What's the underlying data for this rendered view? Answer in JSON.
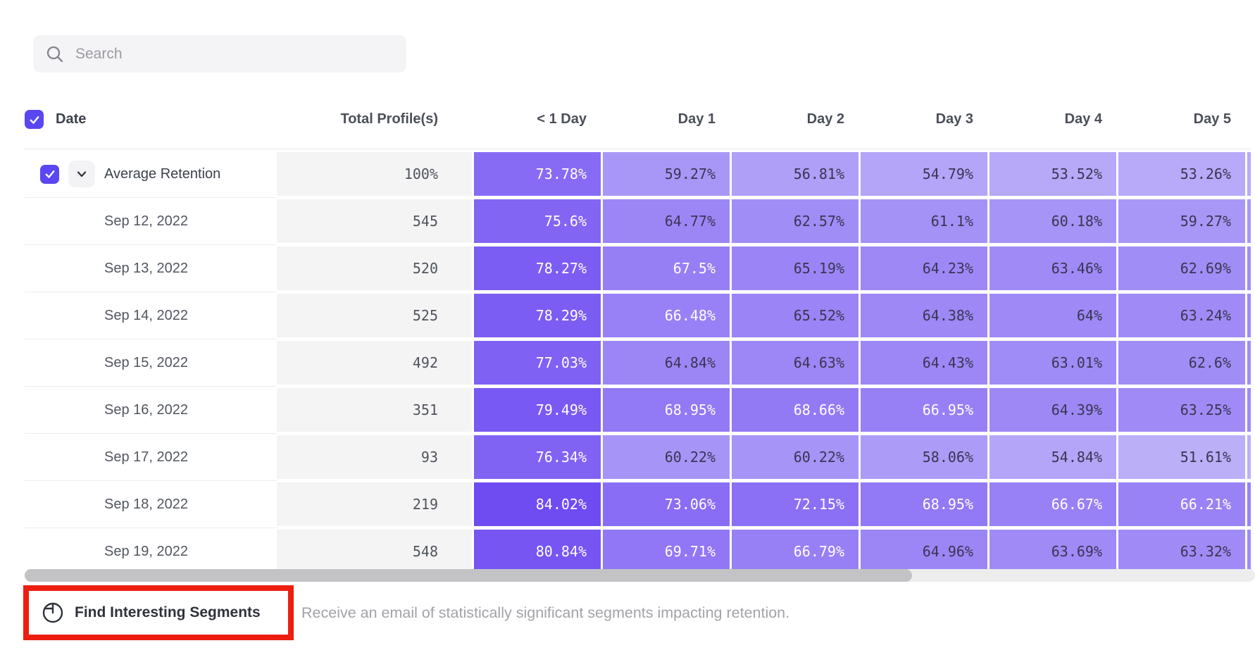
{
  "search": {
    "placeholder": "Search"
  },
  "table": {
    "columns": {
      "date": "Date",
      "total": "Total Profile(s)",
      "days": [
        "< 1 Day",
        "Day 1",
        "Day 2",
        "Day 3",
        "Day 4",
        "Day 5"
      ]
    },
    "average_row": {
      "label": "Average Retention",
      "total": "100%",
      "values": [
        "73.78%",
        "59.27%",
        "56.81%",
        "54.79%",
        "53.52%",
        "53.26%"
      ]
    },
    "rows": [
      {
        "date": "Sep 12, 2022",
        "total": "545",
        "values": [
          "75.6%",
          "64.77%",
          "62.57%",
          "61.1%",
          "60.18%",
          "59.27%"
        ]
      },
      {
        "date": "Sep 13, 2022",
        "total": "520",
        "values": [
          "78.27%",
          "67.5%",
          "65.19%",
          "64.23%",
          "63.46%",
          "62.69%"
        ]
      },
      {
        "date": "Sep 14, 2022",
        "total": "525",
        "values": [
          "78.29%",
          "66.48%",
          "65.52%",
          "64.38%",
          "64%",
          "63.24%"
        ]
      },
      {
        "date": "Sep 15, 2022",
        "total": "492",
        "values": [
          "77.03%",
          "64.84%",
          "64.63%",
          "64.43%",
          "63.01%",
          "62.6%"
        ]
      },
      {
        "date": "Sep 16, 2022",
        "total": "351",
        "values": [
          "79.49%",
          "68.95%",
          "68.66%",
          "66.95%",
          "64.39%",
          "63.25%"
        ]
      },
      {
        "date": "Sep 17, 2022",
        "total": "93",
        "values": [
          "76.34%",
          "60.22%",
          "60.22%",
          "58.06%",
          "54.84%",
          "51.61%"
        ]
      },
      {
        "date": "Sep 18, 2022",
        "total": "219",
        "values": [
          "84.02%",
          "73.06%",
          "72.15%",
          "68.95%",
          "66.67%",
          "66.21%"
        ]
      },
      {
        "date": "Sep 19, 2022",
        "total": "548",
        "values": [
          "80.84%",
          "69.71%",
          "66.79%",
          "64.96%",
          "63.69%",
          "63.32%"
        ]
      }
    ]
  },
  "footer": {
    "button_label": "Find Interesting Segments",
    "description": "Receive an email of statistically significant segments impacting retention."
  },
  "icons": {
    "search": "magnifier-icon",
    "checkbox": "checkmark-icon",
    "expand": "chevron-down-icon",
    "segments": "segment-circle-icon"
  },
  "colors": {
    "accent": "#5a47f1",
    "cell_dark": "#6a45f2",
    "cell_light": "#c4baf9",
    "cell_text_dark": "#3a3552",
    "cell_text_light": "#ffffff",
    "total_column_bg": "#f4f4f5",
    "highlight_border": "#ed1e10",
    "white_text_threshold": 66
  }
}
